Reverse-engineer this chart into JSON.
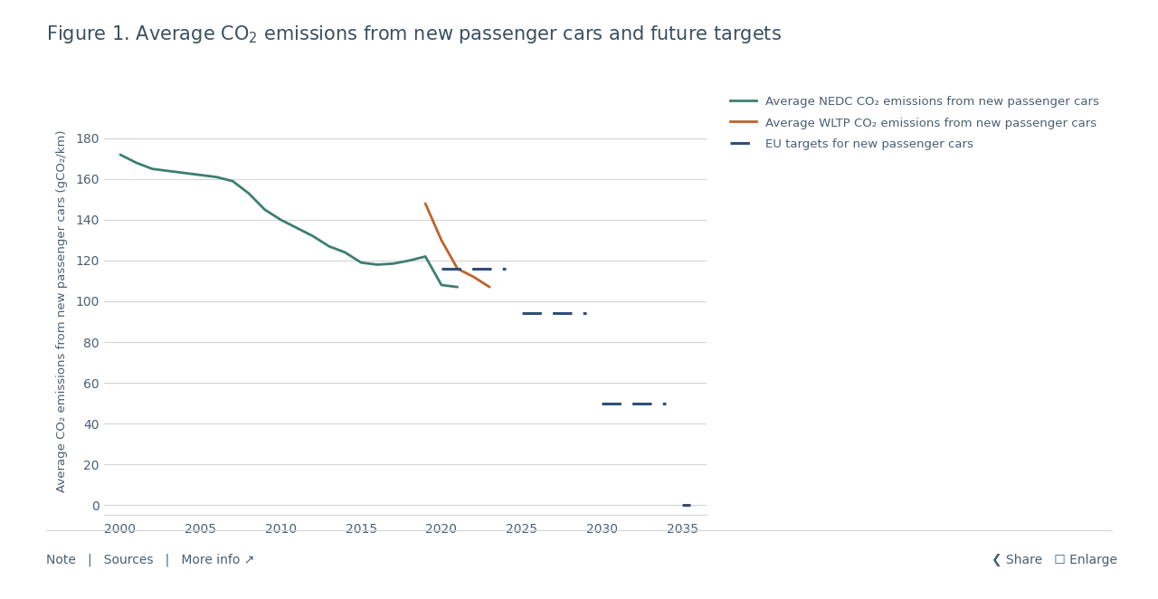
{
  "title_parts": [
    "Figure 1. Average CO",
    "2",
    " emissions from new passenger cars and future targets"
  ],
  "ylabel": "Average CO₂ emissions from new passenger cars (gCO₂/km)",
  "xlabel_ticks": [
    2000,
    2005,
    2010,
    2015,
    2020,
    2025,
    2030,
    2035
  ],
  "ylim": [
    -5,
    195
  ],
  "yticks": [
    0,
    20,
    40,
    60,
    80,
    100,
    120,
    140,
    160,
    180
  ],
  "nedc_x": [
    2000,
    2001,
    2002,
    2003,
    2004,
    2005,
    2006,
    2007,
    2008,
    2009,
    2010,
    2011,
    2012,
    2013,
    2014,
    2015,
    2016,
    2017,
    2018,
    2019,
    2020,
    2021
  ],
  "nedc_y": [
    172,
    168,
    165,
    164,
    163,
    162,
    161,
    159,
    153,
    145,
    140,
    136,
    132,
    127,
    124,
    119,
    118,
    118.5,
    120,
    122,
    108,
    107
  ],
  "wltp_x": [
    2019,
    2020,
    2021,
    2022,
    2023
  ],
  "wltp_y": [
    148,
    130,
    116,
    112,
    107
  ],
  "eu_targets": [
    {
      "x_start": 2020,
      "x_end": 2024,
      "y": 116
    },
    {
      "x_start": 2025,
      "x_end": 2029,
      "y": 94
    },
    {
      "x_start": 2030,
      "x_end": 2034,
      "y": 50
    },
    {
      "x_start": 2035,
      "x_end": 2035.5,
      "y": 0
    }
  ],
  "nedc_color": "#3d7f6e",
  "wltp_color": "#c0622a",
  "eu_color": "#2e4f7a",
  "background_color": "#ffffff",
  "grid_color": "#d5d5d5",
  "title_color": "#3a4f62",
  "axis_color": "#4a5f72",
  "legend_nedc": "Average NEDC CO₂ emissions from new passenger cars",
  "legend_wltp": "Average WLTP CO₂ emissions from new passenger cars",
  "legend_eu": "EU targets for new passenger cars"
}
